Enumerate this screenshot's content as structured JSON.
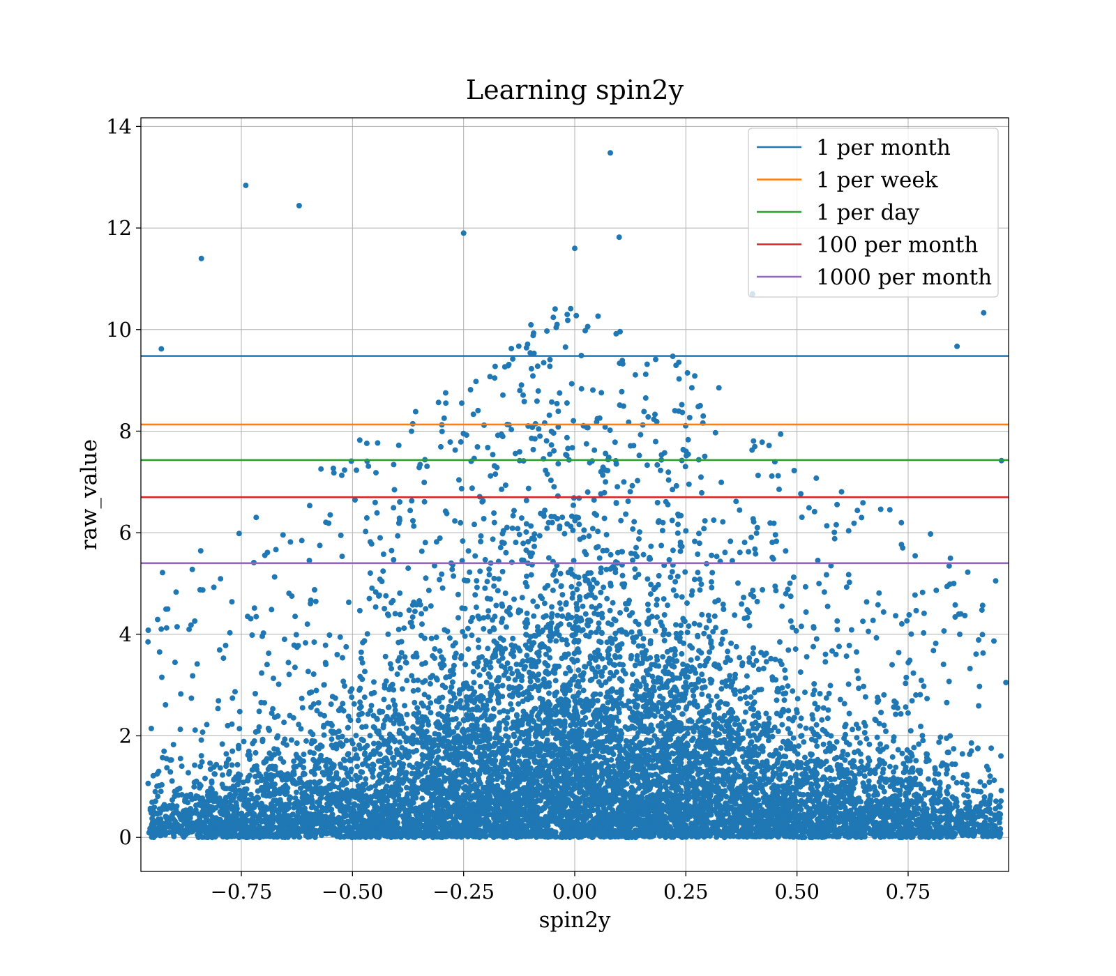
{
  "chart_data": {
    "type": "scatter",
    "title": "Learning spin2y",
    "xlabel": "spin2y",
    "ylabel": "raw_value",
    "xlim": [
      -0.976,
      0.976
    ],
    "ylim": [
      -0.67,
      14.17
    ],
    "xticks": [
      -0.75,
      -0.5,
      -0.25,
      0.0,
      0.25,
      0.5,
      0.75
    ],
    "xtick_labels": [
      "−0.75",
      "−0.50",
      "−0.25",
      "0.00",
      "0.25",
      "0.50",
      "0.75"
    ],
    "yticks": [
      0,
      2,
      4,
      6,
      8,
      10,
      12,
      14
    ],
    "ytick_labels": [
      "0",
      "2",
      "4",
      "6",
      "8",
      "10",
      "12",
      "14"
    ],
    "grid": true,
    "legend_position": "top-right",
    "scatter_color": "#1f77b4",
    "scatter_points_sample": [
      {
        "x": 0.08,
        "y": 13.48
      },
      {
        "x": -0.74,
        "y": 12.84
      },
      {
        "x": -0.62,
        "y": 12.44
      },
      {
        "x": -0.25,
        "y": 11.9
      },
      {
        "x": 0.1,
        "y": 11.82
      },
      {
        "x": 0.0,
        "y": 11.6
      },
      {
        "x": -0.84,
        "y": 11.4
      },
      {
        "x": 0.4,
        "y": 10.7
      },
      {
        "x": -0.96,
        "y": 3.85
      },
      {
        "x": 0.97,
        "y": 3.05
      },
      {
        "x": 0.92,
        "y": 10.33
      },
      {
        "x": 0.86,
        "y": 9.67
      },
      {
        "x": 0.96,
        "y": 7.42
      },
      {
        "x": -0.93,
        "y": 9.62
      }
    ],
    "hlines": [
      {
        "name": "1 per month",
        "y": 9.48,
        "color": "#1f77b4"
      },
      {
        "name": "1 per week",
        "y": 8.13,
        "color": "#ff7f0e"
      },
      {
        "name": "1 per day",
        "y": 7.43,
        "color": "#2ca02c"
      },
      {
        "name": "100 per month",
        "y": 6.7,
        "color": "#d62728"
      },
      {
        "name": "1000 per month",
        "y": 5.4,
        "color": "#9467bd"
      }
    ]
  }
}
